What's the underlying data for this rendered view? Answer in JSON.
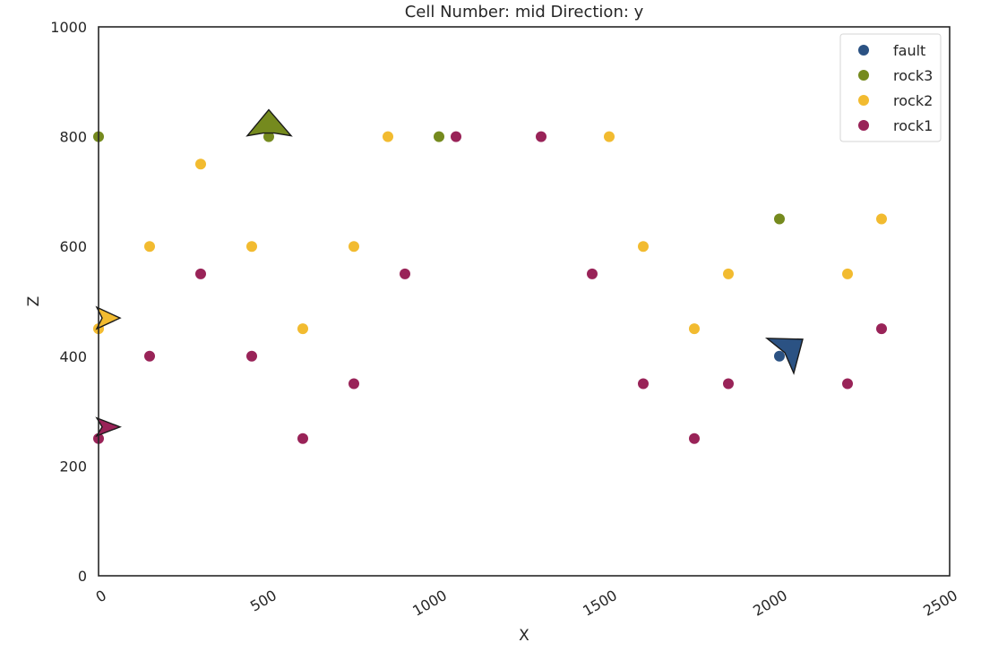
{
  "chart_data": {
    "type": "scatter",
    "title": "Cell Number: mid Direction: y",
    "xlabel": "X",
    "ylabel": "Z",
    "xlim": [
      0,
      2500
    ],
    "ylim": [
      0,
      1000
    ],
    "xticks": [
      "0",
      "500",
      "1000",
      "1500",
      "2000",
      "2500"
    ],
    "yticks": [
      "0",
      "200",
      "400",
      "600",
      "800",
      "1000"
    ],
    "grid": false,
    "legend_position": "top-right",
    "series": [
      {
        "name": "fault",
        "color": "#2b5283",
        "points": [
          [
            2000,
            400
          ]
        ]
      },
      {
        "name": "rock3",
        "color": "#758a1e",
        "points": [
          [
            0,
            800
          ],
          [
            500,
            800
          ],
          [
            1000,
            800
          ],
          [
            2000,
            650
          ]
        ]
      },
      {
        "name": "rock2",
        "color": "#f2bb30",
        "points": [
          [
            0,
            450
          ],
          [
            150,
            600
          ],
          [
            300,
            750
          ],
          [
            450,
            600
          ],
          [
            600,
            450
          ],
          [
            750,
            600
          ],
          [
            850,
            800
          ],
          [
            1500,
            800
          ],
          [
            1600,
            600
          ],
          [
            1750,
            450
          ],
          [
            1850,
            550
          ],
          [
            2200,
            550
          ],
          [
            2300,
            650
          ]
        ]
      },
      {
        "name": "rock1",
        "color": "#992358",
        "points": [
          [
            0,
            250
          ],
          [
            150,
            400
          ],
          [
            300,
            550
          ],
          [
            450,
            400
          ],
          [
            600,
            250
          ],
          [
            750,
            350
          ],
          [
            900,
            550
          ],
          [
            1050,
            800
          ],
          [
            1300,
            800
          ],
          [
            1450,
            550
          ],
          [
            1600,
            350
          ],
          [
            1750,
            250
          ],
          [
            1850,
            350
          ],
          [
            2200,
            350
          ],
          [
            2300,
            450
          ]
        ]
      }
    ],
    "orientations": [
      {
        "series": "fault",
        "x": 2000,
        "z": 400,
        "color": "#2b5283",
        "direction": "up-left"
      },
      {
        "series": "rock3",
        "x": 500,
        "z": 800,
        "color": "#758a1e",
        "direction": "up"
      },
      {
        "series": "rock2",
        "x": 0,
        "z": 450,
        "color": "#f2bb30",
        "direction": "right"
      },
      {
        "series": "rock1",
        "x": 0,
        "z": 250,
        "color": "#992358",
        "direction": "right"
      }
    ]
  }
}
